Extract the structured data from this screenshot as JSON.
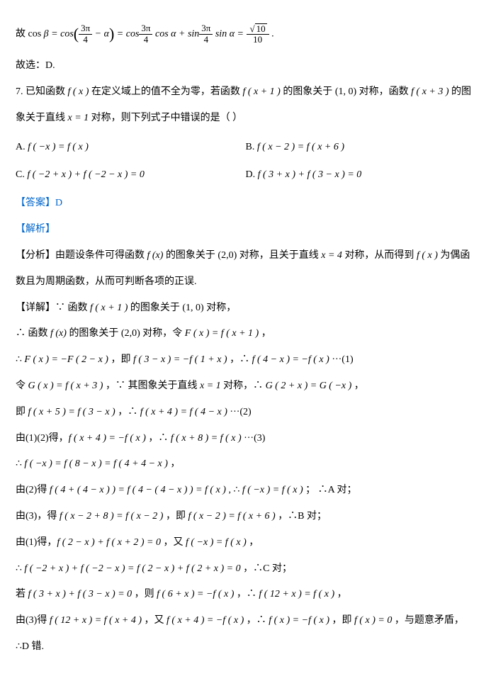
{
  "eq_lead": "故 cos ",
  "eq_beta": "β",
  "eq_eq1": " = cos",
  "eq_lparen": "(",
  "eq_frac1_num": "3π",
  "eq_frac1_den": "4",
  "eq_minus_alpha": " − α",
  "eq_rparen": ")",
  "eq_eq2": " = cos",
  "eq_frac2_num": "3π",
  "eq_frac2_den": "4",
  "eq_cosalpha": " cos α + sin",
  "eq_frac3_num": "3π",
  "eq_frac3_den": "4",
  "eq_sinalpha": " sin α = ",
  "eq_frac4_num_rad": "10",
  "eq_frac4_den": "10",
  "eq_dot": " .",
  "choose_line": "故选：D.",
  "q7_prefix": "7. 已知函数 ",
  "q7_fx": "f ( x )",
  "q7_mid1": " 在定义域上的值不全为零，若函数 ",
  "q7_fx1": "f ( x + 1 )",
  "q7_mid2": " 的图象关于 ",
  "q7_pt10": "(1, 0)",
  "q7_mid3": " 对称，函数 ",
  "q7_fx3": "f ( x + 3 )",
  "q7_mid4": " 的图",
  "q7_line2a": "象关于直线 ",
  "q7_x1": "x = 1",
  "q7_line2b": " 对称，则下列式子中错误的是（  ）",
  "optA_label": "A.  ",
  "optA_math": "f ( −x ) = f ( x )",
  "optB_label": "B.  ",
  "optB_math": "f ( x − 2 ) = f ( x + 6 )",
  "optC_label": "C.  ",
  "optC_math": "f ( −2 + x ) + f ( −2 − x ) = 0",
  "optD_label": "D.  ",
  "optD_math": "f ( 3 + x ) + f ( 3 − x ) = 0",
  "ans": "【答案】D",
  "jiexi": "【解析】",
  "fx_pre": "【分析】由题设条件可得函数 ",
  "fx_fx": "f (x)",
  "fx_mid": " 的图象关于 (2,0) 对称，且关于直线 ",
  "fx_x4": "x = 4",
  "fx_tail": " 对称，从而得到 ",
  "fx_fx2": "f ( x )",
  "fx_tail2": " 为偶函",
  "fx_line2": "数且为周期函数，从而可判断各项的正误.",
  "d1_pre": "【详解】∵ 函数 ",
  "d1_fx1": "f ( x + 1 )",
  "d1_mid": " 的图象关于 ",
  "d1_pt": "(1, 0)",
  "d1_tail": " 对称，",
  "d2_pre": "∴ 函数 ",
  "d2_fx": "f (x)",
  "d2_mid": " 的图象关于 (2,0) 对称，令 ",
  "d2_F": "F ( x ) = f ( x + 1 )",
  "d2_tail": " ，",
  "d3_pre": "∴ ",
  "d3_a": "F ( x ) = −F ( 2 − x )",
  "d3_mid1": " ，即 ",
  "d3_b": "f ( 3 − x ) = −f ( 1 + x )",
  "d3_mid2": " ，∴ ",
  "d3_c": "f ( 4 − x ) = −f ( x )",
  "d3_tail": "  ···(1)",
  "d4_pre": "令 ",
  "d4_G": "G ( x ) = f ( x + 3 )",
  "d4_mid1": " ，∵ 其图象关于直线 ",
  "d4_x1": "x = 1",
  "d4_mid2": " 对称，∴ ",
  "d4_eq": "G ( 2 + x ) = G ( −x )",
  "d4_tail": " ，",
  "d5_pre": "即 ",
  "d5_a": "f ( x + 5 ) = f ( 3 − x )",
  "d5_mid": " ，∴ ",
  "d5_b": "f ( x + 4 ) = f ( 4 − x )",
  "d5_tail": "  ···(2)",
  "d6_pre": "由(1)(2)得，",
  "d6_a": "f ( x + 4 ) = −f ( x )",
  "d6_mid": " ，∴ ",
  "d6_b": "f ( x + 8 ) = f ( x )",
  "d6_tail": "  ···(3)",
  "d7_pre": "∴ ",
  "d7_a": "f ( −x ) = f ( 8 − x ) = f ( 4 + 4 − x )",
  "d7_tail": " ，",
  "d8_pre": "由(2)得 ",
  "d8_a": "f ( 4 + ( 4 − x ) ) = f ( 4 − ( 4 − x ) ) = f ( x )",
  "d8_mid": " , ∴ ",
  "d8_b": "f ( −x ) = f ( x )",
  "d8_tail": " ； ∴A 对；",
  "d9_pre": "由(3)，得 ",
  "d9_a": "f ( x − 2 + 8 ) = f ( x − 2 )",
  "d9_mid": " ，即 ",
  "d9_b": "f ( x − 2 ) = f ( x + 6 )",
  "d9_tail": " ，∴B 对；",
  "d10_pre": "由(1)得，",
  "d10_a": "f ( 2 − x ) + f ( x + 2 ) = 0",
  "d10_mid": " ，又 ",
  "d10_b": "f ( −x ) = f ( x )",
  "d10_tail": " ，",
  "d11_pre": "∴ ",
  "d11_a": "f ( −2 + x ) + f ( −2 − x ) = f ( 2 − x ) + f ( 2 + x ) = 0",
  "d11_tail": " ，∴C 对；",
  "d12_pre": "若 ",
  "d12_a": "f ( 3 + x ) + f ( 3 − x ) = 0",
  "d12_mid1": " ，则 ",
  "d12_b": "f ( 6 + x ) = −f ( x )",
  "d12_mid2": " ，∴ ",
  "d12_c": "f ( 12 + x ) = f ( x )",
  "d12_tail": " ，",
  "d13_pre": "由(3)得 ",
  "d13_a": "f ( 12 + x ) = f ( x + 4 )",
  "d13_mid1": " ，又 ",
  "d13_b": "f ( x + 4 ) = −f ( x )",
  "d13_mid2": " ，∴ ",
  "d13_c": "f ( x ) = −f ( x )",
  "d13_mid3": " ，即 ",
  "d13_d": "f ( x ) = 0",
  "d13_tail": " ，与题意矛盾，",
  "d14": "∴D 错."
}
